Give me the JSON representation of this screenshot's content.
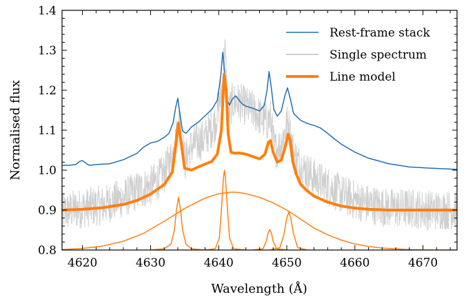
{
  "chart_data": {
    "type": "line",
    "xlabel": "Wavelength (Å)",
    "ylabel": "Normalised flux",
    "xlim": [
      4617,
      4675
    ],
    "ylim": [
      0.8,
      1.4
    ],
    "xticks": [
      4620,
      4630,
      4640,
      4650,
      4660,
      4670
    ],
    "yticks": [
      0.8,
      0.9,
      1.0,
      1.1,
      1.2,
      1.3,
      1.4
    ],
    "ytick_labels": [
      "0.8",
      "0.9",
      "1.0",
      "1.1",
      "1.2",
      "1.3",
      "1.4"
    ],
    "grid": false,
    "legend_position": "top-right",
    "colors": {
      "rest_frame_stack": "#1f6fb4",
      "single_spectrum": "#cfcfcf",
      "line_model": "#ff7f0e"
    },
    "series": [
      {
        "name": "Rest-frame stack",
        "style": "thin-line",
        "x": [
          4617,
          4618,
          4619,
          4619.6,
          4620,
          4620.6,
          4621,
          4622,
          4624,
          4626,
          4628,
          4629,
          4630,
          4631,
          4632,
          4632.7,
          4633.3,
          4633.7,
          4634.0,
          4634.3,
          4634.7,
          4635.2,
          4636,
          4637,
          4638,
          4639,
          4639.8,
          4640.3,
          4640.6,
          4640.9,
          4641.2,
          4641.6,
          4642.0,
          4642.5,
          4643.0,
          4643.5,
          4644,
          4645,
          4646,
          4646.7,
          4647.1,
          4647.4,
          4647.7,
          4648.1,
          4648.6,
          4649.2,
          4649.7,
          4650.1,
          4650.5,
          4651.0,
          4652,
          4653,
          4654,
          4655,
          4656,
          4657,
          4658,
          4659,
          4660,
          4662,
          4665,
          4668,
          4671,
          4675
        ],
        "values": [
          1.012,
          1.012,
          1.014,
          1.022,
          1.024,
          1.016,
          1.012,
          1.014,
          1.016,
          1.026,
          1.042,
          1.058,
          1.068,
          1.072,
          1.082,
          1.092,
          1.118,
          1.158,
          1.18,
          1.14,
          1.098,
          1.092,
          1.108,
          1.12,
          1.136,
          1.152,
          1.175,
          1.235,
          1.295,
          1.24,
          1.176,
          1.163,
          1.178,
          1.186,
          1.175,
          1.165,
          1.16,
          1.155,
          1.148,
          1.162,
          1.2,
          1.247,
          1.21,
          1.152,
          1.135,
          1.148,
          1.185,
          1.206,
          1.18,
          1.142,
          1.125,
          1.117,
          1.112,
          1.105,
          1.092,
          1.078,
          1.065,
          1.055,
          1.045,
          1.03,
          1.016,
          1.008,
          1.005,
          1.002
        ]
      },
      {
        "name": "Single spectrum",
        "style": "noisy-line",
        "x": [
          4617,
          4620,
          4623,
          4626,
          4628,
          4630,
          4632,
          4633.5,
          4634.3,
          4635,
          4636,
          4638,
          4639.5,
          4640.5,
          4640.9,
          4641.4,
          4642,
          4643,
          4645,
          4647,
          4647.6,
          4648.2,
          4649,
          4650.2,
          4651,
          4652,
          4654,
          4656,
          4658,
          4660,
          4662,
          4665,
          4668,
          4671,
          4675
        ],
        "values": [
          0.895,
          0.905,
          0.912,
          0.93,
          0.948,
          0.96,
          0.99,
          1.05,
          1.14,
          1.02,
          1.06,
          1.08,
          1.12,
          1.2,
          1.31,
          1.14,
          1.17,
          1.17,
          1.15,
          1.12,
          1.13,
          1.05,
          1.06,
          1.12,
          1.04,
          1.01,
          0.98,
          0.96,
          0.94,
          0.925,
          0.915,
          0.905,
          0.905,
          0.9,
          0.9
        ]
      },
      {
        "name": "Line model",
        "style": "thick-line",
        "x": [
          4617,
          4620,
          4623,
          4626,
          4628,
          4630,
          4632,
          4633.2,
          4633.8,
          4634.1,
          4634.4,
          4635,
          4636,
          4637,
          4638,
          4639,
          4639.8,
          4640.4,
          4640.8,
          4641.1,
          4641.4,
          4641.8,
          4642.4,
          4643,
          4644,
          4645,
          4646,
          4646.8,
          4647.3,
          4647.6,
          4648.0,
          4648.6,
          4649.2,
          4649.8,
          4650.2,
          4650.5,
          4650.9,
          4651.4,
          4652,
          4653,
          4654,
          4656,
          4658,
          4660,
          4662,
          4665,
          4668,
          4671,
          4675
        ],
        "values": [
          0.9,
          0.902,
          0.906,
          0.914,
          0.924,
          0.94,
          0.964,
          0.995,
          1.08,
          1.118,
          1.08,
          1.005,
          1.0,
          1.008,
          1.015,
          1.022,
          1.04,
          1.1,
          1.24,
          1.2,
          1.09,
          1.045,
          1.042,
          1.043,
          1.04,
          1.034,
          1.028,
          1.04,
          1.07,
          1.074,
          1.045,
          1.02,
          1.025,
          1.06,
          1.09,
          1.075,
          1.02,
          0.99,
          0.965,
          0.948,
          0.935,
          0.92,
          0.91,
          0.905,
          0.902,
          0.9,
          0.9,
          0.9,
          0.9
        ]
      },
      {
        "name": "",
        "style": "component",
        "x": [
          4617,
          4620,
          4623,
          4626,
          4629,
          4632,
          4635,
          4638,
          4640,
          4642,
          4643,
          4644,
          4646,
          4648,
          4650,
          4652,
          4654,
          4656,
          4658,
          4660,
          4662,
          4664,
          4666,
          4668,
          4670,
          4672,
          4675
        ],
        "values": [
          0.801,
          0.804,
          0.81,
          0.822,
          0.842,
          0.872,
          0.904,
          0.93,
          0.941,
          0.945,
          0.944,
          0.941,
          0.932,
          0.918,
          0.9,
          0.878,
          0.855,
          0.838,
          0.825,
          0.815,
          0.809,
          0.805,
          0.803,
          0.801,
          0.8,
          0.8,
          0.8
        ]
      },
      {
        "name": "",
        "style": "component",
        "x": [
          4630,
          4632,
          4633,
          4633.5,
          4633.8,
          4634.1,
          4634.4,
          4634.7,
          4635.2,
          4636,
          4638
        ],
        "values": [
          0.8,
          0.803,
          0.815,
          0.85,
          0.9,
          0.932,
          0.9,
          0.85,
          0.815,
          0.803,
          0.8
        ]
      },
      {
        "name": "",
        "style": "component",
        "x": [
          4638,
          4639.5,
          4640.1,
          4640.4,
          4640.7,
          4640.85,
          4641.0,
          4641.3,
          4641.6,
          4642.2,
          4644
        ],
        "values": [
          0.8,
          0.803,
          0.83,
          0.9,
          0.98,
          1.0,
          0.98,
          0.9,
          0.83,
          0.803,
          0.8
        ]
      },
      {
        "name": "",
        "style": "component",
        "x": [
          4645,
          4646.5,
          4647.0,
          4647.25,
          4647.5,
          4647.75,
          4648.0,
          4648.5,
          4650
        ],
        "values": [
          0.8,
          0.803,
          0.822,
          0.842,
          0.851,
          0.842,
          0.822,
          0.803,
          0.8
        ]
      },
      {
        "name": "",
        "style": "component",
        "x": [
          4647.5,
          4649,
          4649.6,
          4650.0,
          4650.3,
          4650.6,
          4651.0,
          4651.6,
          4653
        ],
        "values": [
          0.8,
          0.806,
          0.84,
          0.88,
          0.895,
          0.88,
          0.84,
          0.806,
          0.8
        ]
      }
    ],
    "legend": [
      {
        "label": "Rest-frame stack",
        "key": "rest_frame_stack"
      },
      {
        "label": "Single spectrum",
        "key": "single_spectrum"
      },
      {
        "label": "Line model",
        "key": "line_model"
      }
    ]
  }
}
